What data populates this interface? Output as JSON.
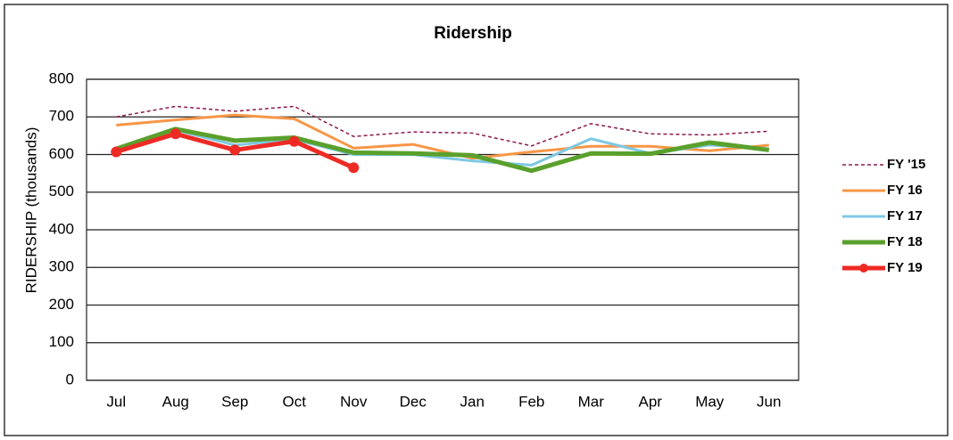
{
  "chart_data": {
    "type": "line",
    "title": "Ridership",
    "y_label": "RIDERSHIP (thousands)",
    "categories": [
      "Jul",
      "Aug",
      "Sep",
      "Oct",
      "Nov",
      "Dec",
      "Jan",
      "Feb",
      "Mar",
      "Apr",
      "May",
      "Jun"
    ],
    "series": [
      {
        "name": "FY '15",
        "color": "#8b1a4b",
        "dashed": true,
        "values": [
          700,
          728,
          715,
          728,
          648,
          660,
          657,
          623,
          682,
          655,
          652,
          662
        ]
      },
      {
        "name": "FY 16",
        "color": "#f79646",
        "values": [
          678,
          692,
          705,
          695,
          617,
          627,
          590,
          607,
          622,
          622,
          610,
          625
        ]
      },
      {
        "name": "FY 17",
        "color": "#7ec8e3",
        "values": [
          612,
          665,
          625,
          640,
          600,
          600,
          583,
          572,
          642,
          603,
          625,
          615
        ]
      },
      {
        "name": "FY 18",
        "color": "#5aa02c",
        "values": [
          615,
          668,
          637,
          645,
          605,
          603,
          598,
          557,
          603,
          602,
          632,
          612
        ]
      },
      {
        "name": "FY 19",
        "color": "#ee2a24",
        "markers": true,
        "values": [
          607,
          655,
          612,
          635,
          565,
          null,
          null,
          null,
          null,
          null,
          null,
          null
        ]
      }
    ],
    "ylim": [
      0,
      800
    ],
    "yticks": [
      0,
      100,
      200,
      300,
      400,
      500,
      600,
      700,
      800
    ],
    "grid": true,
    "legend": "right"
  }
}
